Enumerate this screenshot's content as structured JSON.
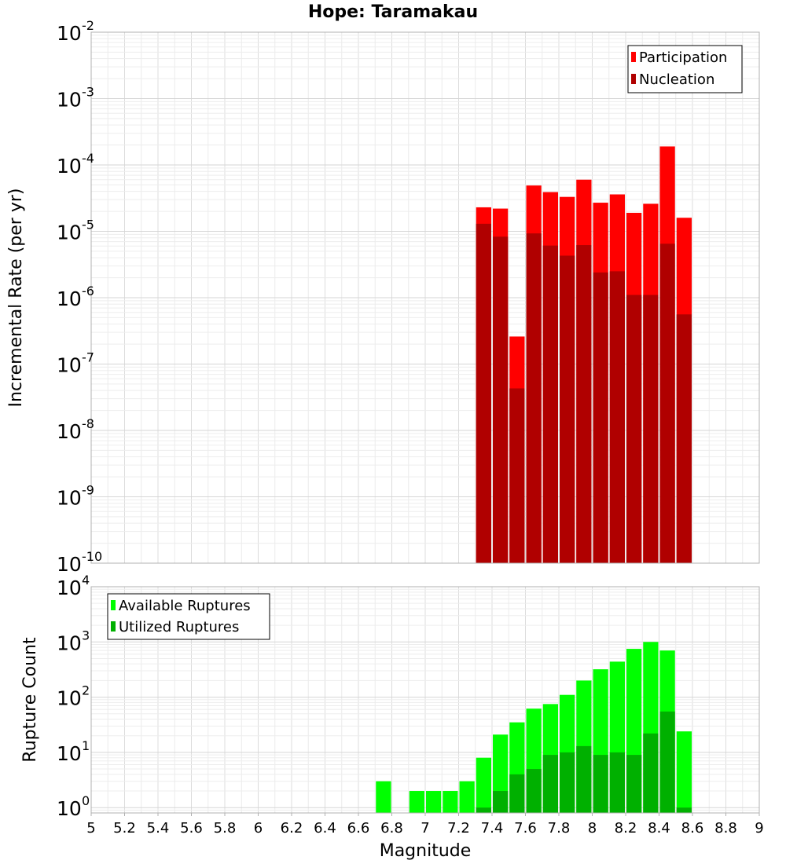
{
  "chart_data": [
    {
      "type": "bar",
      "title": "Hope: Taramakau",
      "xlabel": "",
      "ylabel": "Incremental Rate (per yr)",
      "yscale": "log",
      "xlim": [
        5,
        9
      ],
      "ylim": [
        1e-10,
        0.01
      ],
      "ytick_exponents": [
        "-10",
        "-9",
        "-8",
        "-7",
        "-6",
        "-5",
        "-4",
        "-3",
        "-2"
      ],
      "legend_position": "top-right",
      "grid": true,
      "bar_width": 0.1,
      "series": [
        {
          "name": "Participation",
          "color": "#ff0000",
          "x": [
            7.35,
            7.45,
            7.55,
            7.65,
            7.75,
            7.85,
            7.95,
            8.05,
            8.15,
            8.25,
            8.35,
            8.45,
            8.55
          ],
          "values": [
            2.3e-05,
            2.2e-05,
            2.6e-07,
            4.9e-05,
            3.9e-05,
            3.3e-05,
            6e-05,
            2.7e-05,
            3.6e-05,
            1.9e-05,
            2.6e-05,
            0.00019,
            1.6e-05
          ]
        },
        {
          "name": "Nucleation",
          "color": "#b00000",
          "x": [
            7.35,
            7.45,
            7.55,
            7.65,
            7.75,
            7.85,
            7.95,
            8.05,
            8.15,
            8.25,
            8.35,
            8.45,
            8.55
          ],
          "values": [
            1.3e-05,
            8.3e-06,
            4.3e-08,
            9.3e-06,
            6.1e-06,
            4.3e-06,
            6.2e-06,
            2.4e-06,
            2.5e-06,
            1.1e-06,
            1.1e-06,
            6.5e-06,
            5.6e-07
          ]
        }
      ]
    },
    {
      "type": "bar",
      "title": "",
      "xlabel": "Magnitude",
      "ylabel": "Rupture Count",
      "yscale": "log",
      "xlim": [
        5,
        9
      ],
      "ylim": [
        0.8,
        10000.0
      ],
      "ytick_values": [
        1,
        10,
        100,
        1000,
        10000
      ],
      "ytick_exponents": [
        "0",
        "1",
        "2",
        "3",
        "4"
      ],
      "xticks": [
        "5",
        "5.2",
        "5.4",
        "5.6",
        "5.8",
        "6",
        "6.2",
        "6.4",
        "6.6",
        "6.8",
        "7",
        "7.2",
        "7.4",
        "7.6",
        "7.8",
        "8",
        "8.2",
        "8.4",
        "8.6",
        "8.8",
        "9"
      ],
      "legend_position": "top-left",
      "grid": true,
      "bar_width": 0.1,
      "series": [
        {
          "name": "Available Ruptures",
          "color": "#00ff00",
          "x": [
            6.75,
            6.95,
            7.05,
            7.15,
            7.25,
            7.35,
            7.45,
            7.55,
            7.65,
            7.75,
            7.85,
            7.95,
            8.05,
            8.15,
            8.25,
            8.35,
            8.45,
            8.55
          ],
          "values": [
            3,
            2,
            2,
            2,
            3,
            8,
            21,
            35,
            62,
            75,
            110,
            200,
            320,
            440,
            750,
            1000,
            700,
            24
          ]
        },
        {
          "name": "Utilized Ruptures",
          "color": "#00b000",
          "x": [
            7.35,
            7.45,
            7.55,
            7.65,
            7.75,
            7.85,
            7.95,
            8.05,
            8.15,
            8.25,
            8.35,
            8.45,
            8.55
          ],
          "values": [
            1,
            2,
            4,
            5,
            9,
            10,
            13,
            9,
            10,
            9,
            22,
            55,
            1
          ]
        }
      ]
    }
  ]
}
